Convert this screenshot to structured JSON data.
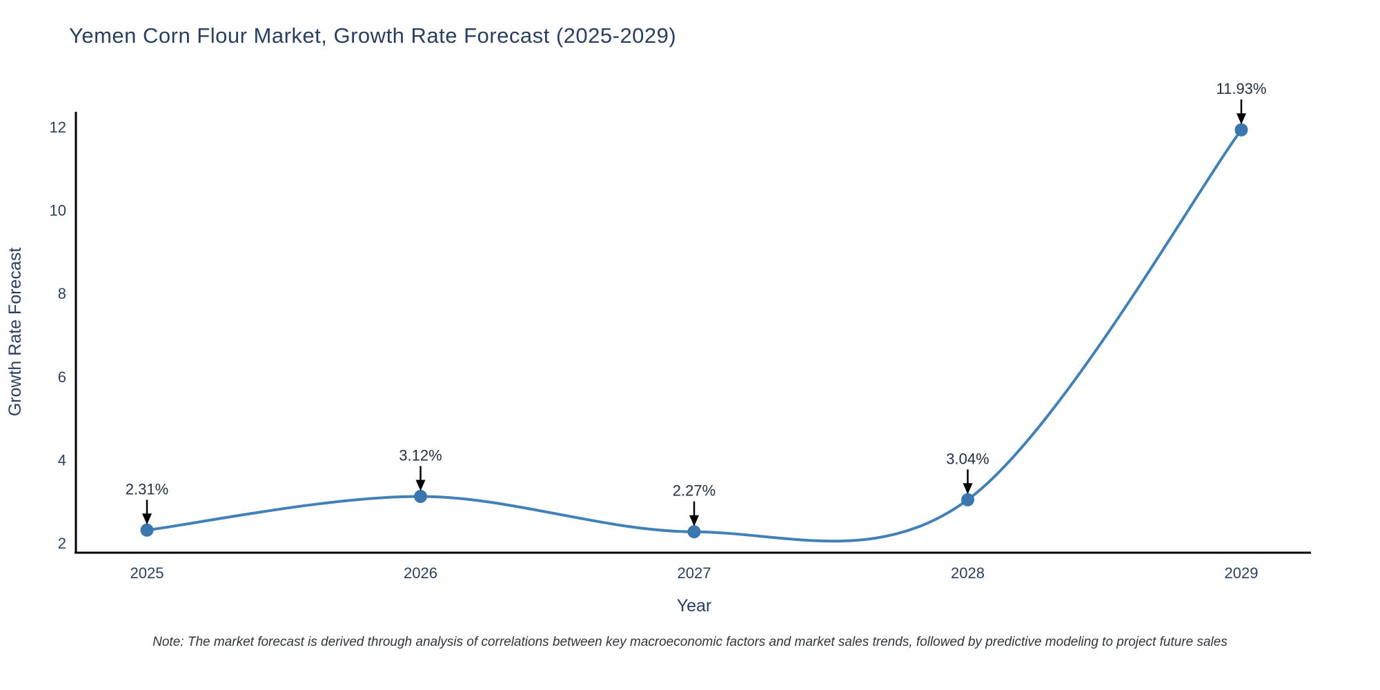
{
  "page": {
    "note": "Note: The market forecast is derived through analysis of correlations between key macroeconomic factors and market sales trends, followed by predictive modeling to project future sales"
  },
  "colors": {
    "line": "#4280b8",
    "marker": "#3b76af",
    "axis": "#000000",
    "text": "#2a3f5f",
    "annotation_text": "#243041",
    "arrow": "#000000",
    "background": "#ffffff"
  },
  "chart_data": {
    "type": "line",
    "title": "Yemen Corn Flour Market, Growth Rate Forecast (2025-2029)",
    "xlabel": "Year",
    "ylabel": "Growth Rate Forecast",
    "categories": [
      "2025",
      "2026",
      "2027",
      "2028",
      "2029"
    ],
    "values": [
      2.31,
      3.12,
      2.27,
      3.04,
      11.93
    ],
    "point_labels": [
      "2.31%",
      "3.12%",
      "2.27%",
      "3.04%",
      "11.93%"
    ],
    "series_name": "Growth Rate Forecast",
    "ylim": [
      2,
      12
    ],
    "yticks": [
      2,
      4,
      6,
      8,
      10,
      12
    ],
    "grid": false,
    "legend_position": "none",
    "line_shape": "spline",
    "marker": "circle",
    "annotations_have_arrows": true
  }
}
